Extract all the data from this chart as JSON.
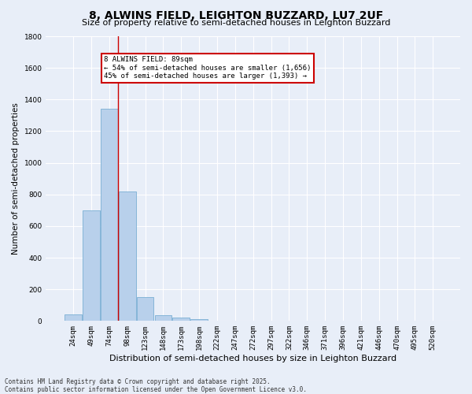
{
  "title": "8, ALWINS FIELD, LEIGHTON BUZZARD, LU7 2UF",
  "subtitle": "Size of property relative to semi-detached houses in Leighton Buzzard",
  "xlabel": "Distribution of semi-detached houses by size in Leighton Buzzard",
  "ylabel": "Number of semi-detached properties",
  "categories": [
    "24sqm",
    "49sqm",
    "74sqm",
    "98sqm",
    "123sqm",
    "148sqm",
    "173sqm",
    "198sqm",
    "222sqm",
    "247sqm",
    "272sqm",
    "297sqm",
    "322sqm",
    "346sqm",
    "371sqm",
    "396sqm",
    "421sqm",
    "446sqm",
    "470sqm",
    "495sqm",
    "520sqm"
  ],
  "values": [
    40,
    700,
    1340,
    820,
    150,
    35,
    20,
    10,
    0,
    0,
    0,
    0,
    0,
    0,
    0,
    0,
    0,
    0,
    0,
    0,
    0
  ],
  "bar_color": "#b8d0eb",
  "bar_edge_color": "#7aafd4",
  "annotation_title": "8 ALWINS FIELD: 89sqm",
  "annotation_line1": "← 54% of semi-detached houses are smaller (1,656)",
  "annotation_line2": "45% of semi-detached houses are larger (1,393) →",
  "annotation_box_color": "#ffffff",
  "annotation_box_edge": "#cc0000",
  "ylim": [
    0,
    1800
  ],
  "yticks": [
    0,
    200,
    400,
    600,
    800,
    1000,
    1200,
    1400,
    1600,
    1800
  ],
  "background_color": "#e8eef8",
  "grid_color": "#ffffff",
  "footer": "Contains HM Land Registry data © Crown copyright and database right 2025.\nContains public sector information licensed under the Open Government Licence v3.0.",
  "title_fontsize": 10,
  "subtitle_fontsize": 8,
  "xlabel_fontsize": 8,
  "ylabel_fontsize": 7.5,
  "tick_fontsize": 6.5,
  "footer_fontsize": 5.5,
  "red_line_x": 2.5
}
